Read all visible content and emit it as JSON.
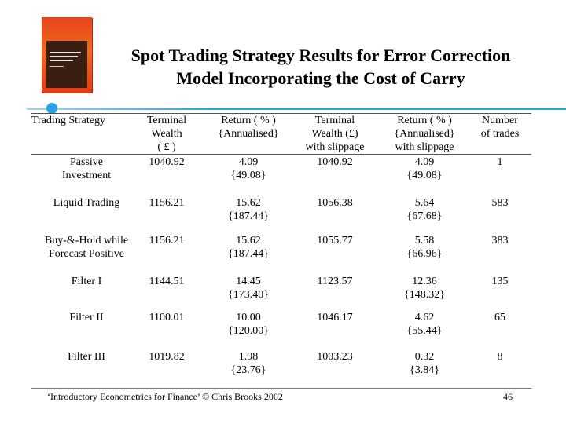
{
  "slide": {
    "title_line1": "Spot Trading Strategy Results for Error Correction",
    "title_line2": "Model Incorporating the Cost of Carry"
  },
  "table": {
    "headers": {
      "strategy": [
        "Trading Strategy"
      ],
      "terminal_wealth": [
        "Terminal",
        "Wealth",
        "( £ )"
      ],
      "return": [
        "Return ( % )",
        "{Annualised}"
      ],
      "terminal_wealth_slippage": [
        "Terminal",
        "Wealth (£)",
        "with slippage"
      ],
      "return_slippage": [
        "Return ( % )",
        "{Annualised}",
        "with slippage"
      ],
      "trades": [
        "Number",
        "of  trades"
      ]
    },
    "rows": [
      {
        "strategy": [
          "Passive",
          "Investment"
        ],
        "wealth": "1040.92",
        "ret": [
          "4.09",
          "{49.08}"
        ],
        "wealth_slip": "1040.92",
        "ret_slip": [
          "4.09",
          "{49.08}"
        ],
        "trades": "1"
      },
      {
        "strategy": [
          "Liquid Trading"
        ],
        "wealth": "1156.21",
        "ret": [
          "15.62",
          "{187.44}"
        ],
        "wealth_slip": "1056.38",
        "ret_slip": [
          "5.64",
          "{67.68}"
        ],
        "trades": "583"
      },
      {
        "strategy": [
          "Buy-&-Hold while",
          "Forecast Positive"
        ],
        "wealth": "1156.21",
        "ret": [
          "15.62",
          "{187.44}"
        ],
        "wealth_slip": "1055.77",
        "ret_slip": [
          "5.58",
          "{66.96}"
        ],
        "trades": "383"
      },
      {
        "strategy": [
          "Filter I"
        ],
        "wealth": "1144.51",
        "ret": [
          "14.45",
          "{173.40}"
        ],
        "wealth_slip": "1123.57",
        "ret_slip": [
          "12.36",
          "{148.32}"
        ],
        "trades": "135"
      },
      {
        "strategy": [
          "Filter II"
        ],
        "wealth": "1100.01",
        "ret": [
          "10.00",
          "{120.00}"
        ],
        "wealth_slip": "1046.17",
        "ret_slip": [
          "4.62",
          "{55.44}"
        ],
        "trades": "65"
      },
      {
        "strategy": [
          "Filter III"
        ],
        "wealth": "1019.82",
        "ret": [
          "1.98",
          "{23.76}"
        ],
        "wealth_slip": "1003.23",
        "ret_slip": [
          "0.32",
          "{3.84}"
        ],
        "trades": "8"
      }
    ]
  },
  "footer": {
    "citation": "‘Introductory Econometrics for Finance’ © Chris Brooks 2002",
    "page_number": "46"
  },
  "colors": {
    "accent_blue": "#27a2e6",
    "book_cover": "#e8431d"
  }
}
